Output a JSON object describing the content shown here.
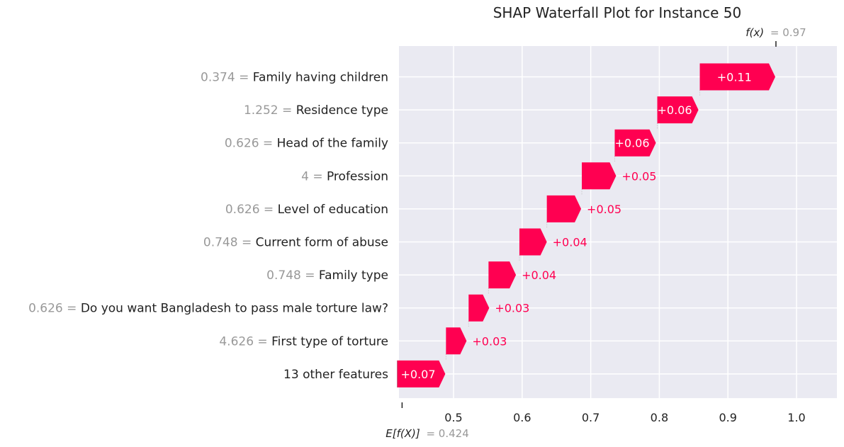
{
  "chart_data": {
    "type": "waterfall",
    "title": "SHAP Waterfall Plot for Instance 50",
    "base_value": 0.424,
    "base_label_prefix": "E[f(X)]",
    "base_label_value": "= 0.424",
    "output_value": 0.97,
    "output_label_prefix": "f(x)",
    "output_label_value": "= 0.97",
    "xlim": [
      0.425,
      1.06
    ],
    "x_ticks": [
      0.5,
      0.6,
      0.7,
      0.8,
      0.9,
      1.0
    ],
    "x_tick_labels": [
      "0.5",
      "0.6",
      "0.7",
      "0.8",
      "0.9",
      "1.0"
    ],
    "grid": true,
    "colors": {
      "positive": "#ff0051",
      "background": "#eaeaf2",
      "feature_value_text": "#999999",
      "feature_name_text": "#222222",
      "grid": "#ffffff"
    },
    "features": [
      {
        "value": "0.374",
        "name": "Family having children",
        "shap": 0.11,
        "label": "+0.11"
      },
      {
        "value": "1.252",
        "name": "Residence type",
        "shap": 0.06,
        "label": "+0.06"
      },
      {
        "value": "0.626",
        "name": "Head of the family",
        "shap": 0.06,
        "label": "+0.06"
      },
      {
        "value": "4",
        "name": "Profession",
        "shap": 0.05,
        "label": "+0.05"
      },
      {
        "value": "0.626",
        "name": "Level of education",
        "shap": 0.05,
        "label": "+0.05"
      },
      {
        "value": "0.748",
        "name": "Current form of abuse",
        "shap": 0.04,
        "label": "+0.04"
      },
      {
        "value": "0.748",
        "name": "Family type",
        "shap": 0.04,
        "label": "+0.04"
      },
      {
        "value": "0.626",
        "name": "Do you want Bangladesh to pass male torture law?",
        "shap": 0.03,
        "label": "+0.03"
      },
      {
        "value": "4.626",
        "name": "First type of torture",
        "shap": 0.03,
        "label": "+0.03"
      },
      {
        "value": "",
        "name": "13 other features",
        "shap": 0.07,
        "label": "+0.07"
      }
    ],
    "bar_ends": [
      0.969,
      0.857,
      0.795,
      0.737,
      0.686,
      0.636,
      0.591,
      0.552,
      0.519,
      0.488
    ]
  }
}
